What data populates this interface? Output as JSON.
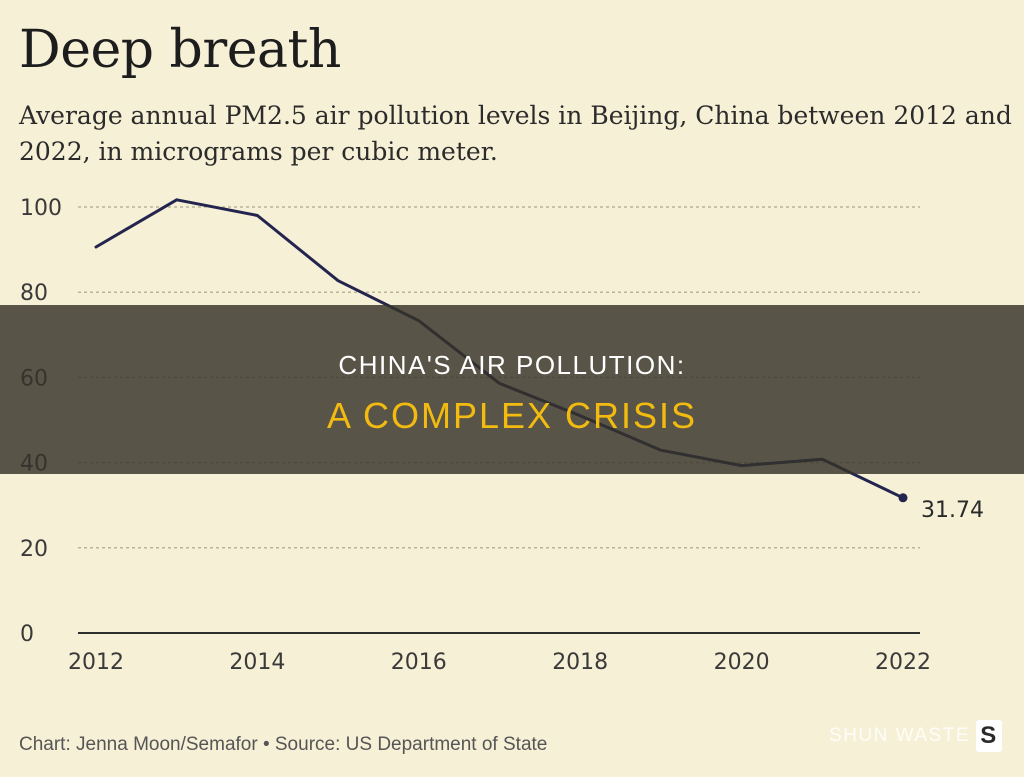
{
  "header": {
    "title": "Deep breath",
    "subtitle": "Average annual PM2.5 air pollution levels in Beijing, China between 2012 and 2022, in micrograms per cubic meter."
  },
  "footer": {
    "source": "Chart: Jenna Moon/Semafor • Source: US Department of State"
  },
  "overlay": {
    "line1": "CHINA'S AIR POLLUTION:",
    "line2": "A COMPLEX CRISIS",
    "band_color": "#34322a",
    "highlight_color": "#f3bb10"
  },
  "watermark": {
    "text": "SHUN WASTE",
    "icon": "s-logo-icon"
  },
  "colors": {
    "background": "#f6f0d6",
    "line": "#23254f",
    "grid": "#b9b59a"
  },
  "chart_data": {
    "type": "line",
    "title": "Deep breath",
    "subtitle": "Average annual PM2.5 air pollution levels in Beijing, China between 2012 and 2022, in micrograms per cubic meter.",
    "xlabel": "",
    "ylabel": "",
    "x": [
      2012,
      2013,
      2014,
      2015,
      2016,
      2017,
      2018,
      2019,
      2020,
      2021,
      2022
    ],
    "values": [
      90.6,
      101.7,
      98.0,
      82.7,
      73.3,
      58.6,
      51.0,
      42.9,
      39.3,
      40.8,
      31.74
    ],
    "xlim": [
      2012,
      2022
    ],
    "ylim": [
      0,
      100
    ],
    "xticks": [
      2012,
      2014,
      2016,
      2018,
      2020,
      2022
    ],
    "yticks": [
      0,
      20,
      40,
      60,
      80,
      100
    ],
    "grid": true,
    "end_label": "31.74"
  }
}
